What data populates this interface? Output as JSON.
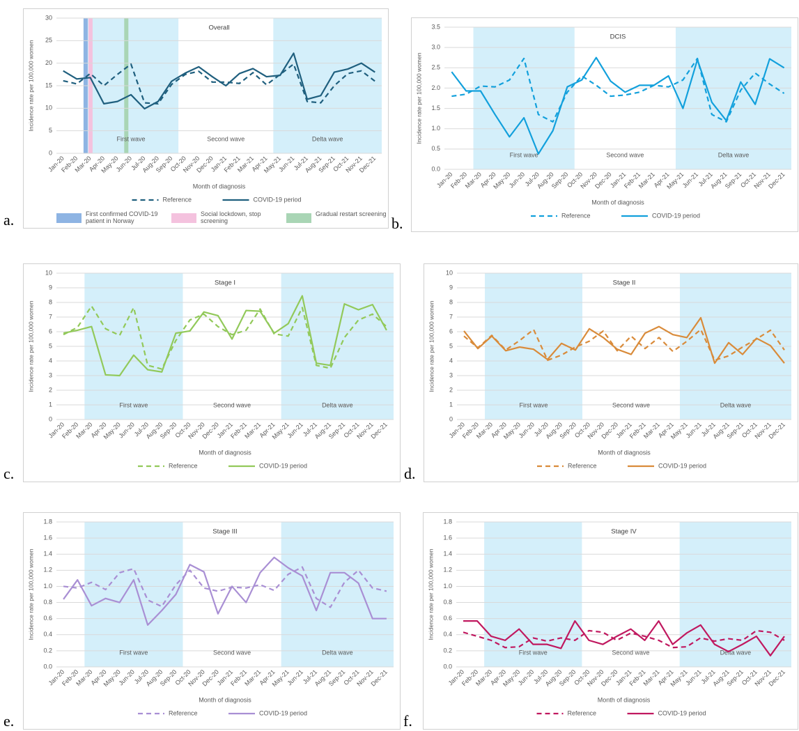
{
  "chart_data": [
    {
      "type": "line",
      "panel": "a.",
      "title": "Overall",
      "categories": [
        "Jan-20",
        "Feb-20",
        "Mar-20",
        "Apr-20",
        "May-20",
        "Jun-20",
        "Jul-20",
        "Aug-20",
        "Sep-20",
        "Oct-20",
        "Nov-20",
        "Dec-20",
        "Jan-21",
        "Feb-21",
        "Mar-21",
        "Apr-21",
        "May-21",
        "Jun-21",
        "Jul-21",
        "Aug-21",
        "Sep-21",
        "Oct-21",
        "Nov-21",
        "Dec-21"
      ],
      "series": [
        {
          "name": "Reference",
          "color": "#1f5f7e",
          "dashed": true,
          "values": [
            16.1,
            15.4,
            17.7,
            15,
            17.5,
            19.8,
            11.2,
            11,
            15.3,
            17.5,
            18.2,
            15.8,
            15.8,
            15.5,
            17.9,
            15.2,
            17.5,
            19.8,
            11.5,
            11.2,
            15,
            17.7,
            18.3,
            16
          ]
        },
        {
          "name": "COVID-19 period",
          "color": "#1f5f7e",
          "dashed": false,
          "values": [
            18.3,
            16.5,
            16.8,
            11,
            11.5,
            13,
            9.9,
            11.5,
            16,
            17.8,
            19.2,
            17,
            15,
            17.7,
            18.8,
            17,
            17.3,
            22.2,
            12,
            12.8,
            18,
            18.7,
            20,
            18
          ]
        }
      ],
      "ylim": [
        0,
        30
      ],
      "yticks": [
        0,
        5,
        10,
        15,
        20,
        25,
        30
      ],
      "grid": true,
      "y_label": "Incidence rate per 100,000 women",
      "x_label": "Month of diagnosis",
      "shade_color": "#d4effa",
      "waves": [
        {
          "label": "First wave",
          "from": "Mar-20",
          "to": "Sep-20",
          "shaded": true
        },
        {
          "label": "Second wave",
          "from": "Oct-20",
          "to": "Apr-21",
          "shaded": false
        },
        {
          "label": "Delta wave",
          "from": "May-21",
          "to": "Dec-21",
          "shaded": true
        }
      ],
      "events": [
        {
          "label": "First confirmed COVID-19 patient in Norway",
          "color": "#8eb4e3",
          "at": "Mar-20"
        },
        {
          "label": "Social lockdown, stop screening",
          "color": "#f4c2de",
          "at": "Mar-20"
        },
        {
          "label": "Gradual restart screening",
          "color": "#a9d5b5",
          "at": "Jun-20"
        }
      ]
    },
    {
      "type": "line",
      "panel": "b.",
      "title": "DCIS",
      "categories": [
        "Jan-20",
        "Feb-20",
        "Mar-20",
        "Apr-20",
        "May-20",
        "Jun-20",
        "Jul-20",
        "Aug-20",
        "Sep-20",
        "Oct-20",
        "Nov-20",
        "Dec-20",
        "Jan-21",
        "Feb-21",
        "Mar-21",
        "Apr-21",
        "May-21",
        "Jun-21",
        "Jul-21",
        "Aug-21",
        "Sep-21",
        "Oct-21",
        "Nov-21",
        "Dec-21"
      ],
      "series": [
        {
          "name": "Reference",
          "color": "#12a0dc",
          "dashed": true,
          "values": [
            1.8,
            1.85,
            2.05,
            2.03,
            2.2,
            2.73,
            1.35,
            1.17,
            1.9,
            2.3,
            2.07,
            1.8,
            1.83,
            1.9,
            2.07,
            2.03,
            2.2,
            2.73,
            1.35,
            1.17,
            1.95,
            2.37,
            2.1,
            1.87
          ]
        },
        {
          "name": "COVID-19 period",
          "color": "#12a0dc",
          "dashed": false,
          "values": [
            2.4,
            1.93,
            1.93,
            1.35,
            0.8,
            1.27,
            0.38,
            0.95,
            2.03,
            2.2,
            2.75,
            2.17,
            1.9,
            2.07,
            2.07,
            2.3,
            1.5,
            2.7,
            1.65,
            1.2,
            2.15,
            1.6,
            2.72,
            2.5
          ]
        }
      ],
      "ylim": [
        0,
        3.5
      ],
      "yticks": [
        {
          "value": 0,
          "label": "0.0"
        },
        0.5,
        {
          "value": 1,
          "label": "1.0"
        },
        1.5,
        {
          "value": 2,
          "label": "2.0"
        },
        2.5,
        {
          "value": 3,
          "label": "3.0"
        },
        3.5
      ],
      "grid": true,
      "y_label": "Incidence rate per 100,000 women",
      "x_label": "Month of diagnosis",
      "shade_color": "#d4effa",
      "waves": [
        {
          "label": "First wave",
          "from": "Mar-20",
          "to": "Sep-20",
          "shaded": true
        },
        {
          "label": "Second wave",
          "from": "Oct-20",
          "to": "Apr-21",
          "shaded": false
        },
        {
          "label": "Delta wave",
          "from": "May-21",
          "to": "Dec-21",
          "shaded": true
        }
      ]
    },
    {
      "type": "line",
      "panel": "c.",
      "title": "Stage I",
      "categories": [
        "Jan-20",
        "Feb-20",
        "Mar-20",
        "Apr-20",
        "May-20",
        "Jun-20",
        "Jul-20",
        "Aug-20",
        "Sep-20",
        "Oct-20",
        "Nov-20",
        "Dec-20",
        "Jan-21",
        "Feb-21",
        "Mar-21",
        "Apr-21",
        "May-21",
        "Jun-21",
        "Jul-21",
        "Aug-21",
        "Sep-21",
        "Oct-21",
        "Nov-21",
        "Dec-21"
      ],
      "series": [
        {
          "name": "Reference",
          "color": "#92c95a",
          "dashed": true,
          "values": [
            5.8,
            6.3,
            7.75,
            6.2,
            5.75,
            7.65,
            3.7,
            3.45,
            5.4,
            6.8,
            7.2,
            6.35,
            5.8,
            6.1,
            7.55,
            5.85,
            5.7,
            7.65,
            3.7,
            3.5,
            5.6,
            6.8,
            7.2,
            6.35
          ]
        },
        {
          "name": "COVID-19 period",
          "color": "#92c95a",
          "dashed": false,
          "values": [
            5.9,
            6.1,
            6.35,
            3.05,
            3,
            4.4,
            3.4,
            3.25,
            5.9,
            6.05,
            7.35,
            7.1,
            5.5,
            7.45,
            7.4,
            5.9,
            6.55,
            8.45,
            3.85,
            3.7,
            7.9,
            7.5,
            7.85,
            6.1
          ]
        }
      ],
      "ylim": [
        0,
        10
      ],
      "yticks": [
        0,
        1,
        2,
        3,
        4,
        5,
        6,
        7,
        8,
        9,
        10
      ],
      "grid": true,
      "y_label": "Incidence rate per 100,000 women",
      "x_label": "Month of diagnosis",
      "shade_color": "#d4effa",
      "waves": [
        {
          "label": "First wave",
          "from": "Mar-20",
          "to": "Sep-20",
          "shaded": true
        },
        {
          "label": "Second wave",
          "from": "Oct-20",
          "to": "Apr-21",
          "shaded": false
        },
        {
          "label": "Delta wave",
          "from": "May-21",
          "to": "Dec-21",
          "shaded": true
        }
      ]
    },
    {
      "type": "line",
      "panel": "d.",
      "title": "Stage II",
      "categories": [
        "Jan-20",
        "Feb-20",
        "Mar-20",
        "Apr-20",
        "May-20",
        "Jun-20",
        "Jul-20",
        "Aug-20",
        "Sep-20",
        "Oct-20",
        "Nov-20",
        "Dec-20",
        "Jan-21",
        "Feb-21",
        "Mar-21",
        "Apr-21",
        "May-21",
        "Jun-21",
        "Jul-21",
        "Aug-21",
        "Sep-21",
        "Oct-21",
        "Nov-21",
        "Dec-21"
      ],
      "series": [
        {
          "name": "Reference",
          "color": "#d98b3a",
          "dashed": true,
          "values": [
            5.7,
            4.9,
            5.75,
            4.75,
            5.4,
            6.15,
            4.05,
            4.4,
            4.95,
            5.35,
            6.05,
            4.7,
            5.7,
            4.85,
            5.6,
            4.65,
            5.35,
            6.15,
            4.05,
            4.35,
            4.95,
            5.5,
            6.1,
            4.75
          ]
        },
        {
          "name": "COVID-19 period",
          "color": "#d98b3a",
          "dashed": false,
          "values": [
            6.05,
            4.85,
            5.7,
            4.7,
            4.95,
            4.8,
            4.1,
            5.2,
            4.75,
            6.2,
            5.6,
            4.8,
            4.45,
            5.9,
            6.35,
            5.8,
            5.6,
            6.95,
            3.85,
            5.25,
            4.45,
            5.55,
            5.05,
            3.85
          ]
        }
      ],
      "ylim": [
        0,
        10
      ],
      "yticks": [
        0,
        1,
        2,
        3,
        4,
        5,
        6,
        7,
        8,
        9,
        10
      ],
      "grid": true,
      "y_label": "Incidence rate per 100,000 women",
      "x_label": "Month of diagnosis",
      "shade_color": "#d4effa",
      "waves": [
        {
          "label": "First wave",
          "from": "Mar-20",
          "to": "Sep-20",
          "shaded": true
        },
        {
          "label": "Second wave",
          "from": "Oct-20",
          "to": "Apr-21",
          "shaded": false
        },
        {
          "label": "Delta wave",
          "from": "May-21",
          "to": "Dec-21",
          "shaded": true
        }
      ]
    },
    {
      "type": "line",
      "panel": "e.",
      "title": "Stage III",
      "categories": [
        "Jan-20",
        "Feb-20",
        "Mar-20",
        "Apr-20",
        "May-20",
        "Jun-20",
        "Jul-20",
        "Aug-20",
        "Sep-20",
        "Oct-20",
        "Nov-20",
        "Dec-20",
        "Jan-21",
        "Feb-21",
        "Mar-21",
        "Apr-21",
        "May-21",
        "Jun-21",
        "Jul-21",
        "Aug-21",
        "Sep-21",
        "Oct-21",
        "Nov-21",
        "Dec-21"
      ],
      "series": [
        {
          "name": "Reference",
          "color": "#a98fd4",
          "dashed": true,
          "values": [
            1,
            0.98,
            1.05,
            0.96,
            1.17,
            1.22,
            0.83,
            0.75,
            1.02,
            1.2,
            0.98,
            0.94,
            0.99,
            0.98,
            1.02,
            0.95,
            1.15,
            1.24,
            0.85,
            0.74,
            1.05,
            1.2,
            0.98,
            0.94
          ]
        },
        {
          "name": "COVID-19 period",
          "color": "#a98fd4",
          "dashed": false,
          "values": [
            0.84,
            1.08,
            0.76,
            0.85,
            0.8,
            1.08,
            0.52,
            0.7,
            0.9,
            1.27,
            1.18,
            0.66,
            1,
            0.8,
            1.17,
            1.36,
            1.23,
            1.13,
            0.7,
            1.17,
            1.17,
            1.04,
            0.6,
            0.6
          ]
        }
      ],
      "ylim": [
        0,
        1.8
      ],
      "yticks": [
        {
          "value": 0,
          "label": "0.0"
        },
        0.2,
        0.4,
        0.6,
        0.8,
        {
          "value": 1,
          "label": "1.0"
        },
        1.2,
        1.4,
        1.6,
        1.8
      ],
      "grid": true,
      "y_label": "Incidence rate per 100,000 women",
      "x_label": "Month of diagnosis",
      "shade_color": "#d4effa",
      "waves": [
        {
          "label": "First wave",
          "from": "Mar-20",
          "to": "Sep-20",
          "shaded": true
        },
        {
          "label": "Second wave",
          "from": "Oct-20",
          "to": "Apr-21",
          "shaded": false
        },
        {
          "label": "Delta wave",
          "from": "May-21",
          "to": "Dec-21",
          "shaded": true
        }
      ]
    },
    {
      "type": "line",
      "panel": "f.",
      "title": "Stage IV",
      "categories": [
        "Jan-20",
        "Feb-20",
        "Mar-20",
        "Apr-20",
        "May-20",
        "Jun-20",
        "Jul-20",
        "Aug-20",
        "Sep-20",
        "Oct-20",
        "Nov-20",
        "Dec-20",
        "Jan-21",
        "Feb-21",
        "Mar-21",
        "Apr-21",
        "May-21",
        "Jun-21",
        "Jul-21",
        "Aug-21",
        "Sep-21",
        "Oct-21",
        "Nov-21",
        "Dec-21"
      ],
      "series": [
        {
          "name": "Reference",
          "color": "#c0185f",
          "dashed": true,
          "values": [
            0.43,
            0.38,
            0.33,
            0.24,
            0.25,
            0.36,
            0.32,
            0.36,
            0.33,
            0.45,
            0.43,
            0.33,
            0.42,
            0.38,
            0.33,
            0.24,
            0.25,
            0.36,
            0.32,
            0.35,
            0.33,
            0.45,
            0.43,
            0.33
          ]
        },
        {
          "name": "COVID-19 period",
          "color": "#c0185f",
          "dashed": false,
          "values": [
            0.57,
            0.57,
            0.38,
            0.33,
            0.47,
            0.28,
            0.28,
            0.23,
            0.57,
            0.33,
            0.28,
            0.38,
            0.47,
            0.33,
            0.57,
            0.28,
            0.42,
            0.52,
            0.28,
            0.19,
            0.28,
            0.38,
            0.14,
            0.38
          ]
        }
      ],
      "ylim": [
        0,
        1.8
      ],
      "yticks": [
        {
          "value": 0,
          "label": "0.0"
        },
        0.2,
        0.4,
        0.6,
        0.8,
        {
          "value": 1,
          "label": "1.0"
        },
        1.2,
        1.4,
        1.6,
        1.8
      ],
      "grid": true,
      "y_label": "Incidence rate per 100,000 women",
      "x_label": "Month of diagnosis",
      "shade_color": "#d4effa",
      "waves": [
        {
          "label": "First wave",
          "from": "Mar-20",
          "to": "Sep-20",
          "shaded": true
        },
        {
          "label": "Second wave",
          "from": "Oct-20",
          "to": "Apr-21",
          "shaded": false
        },
        {
          "label": "Delta wave",
          "from": "May-21",
          "to": "Dec-21",
          "shaded": true
        }
      ]
    }
  ]
}
